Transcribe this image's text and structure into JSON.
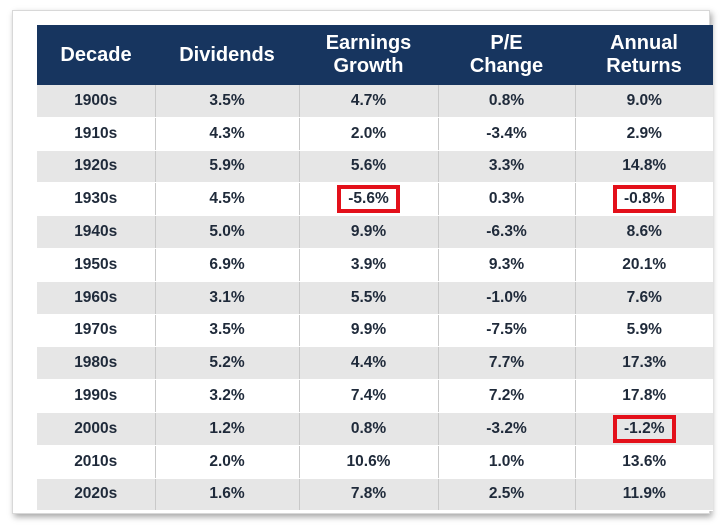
{
  "chart_data": {
    "type": "table",
    "columns": [
      "Decade",
      "Dividends",
      "Earnings\nGrowth",
      "P/E\nChange",
      "Annual\nReturns"
    ],
    "rows": [
      [
        "1900s",
        "3.5%",
        "4.7%",
        "0.8%",
        "9.0%"
      ],
      [
        "1910s",
        "4.3%",
        "2.0%",
        "-3.4%",
        "2.9%"
      ],
      [
        "1920s",
        "5.9%",
        "5.6%",
        "3.3%",
        "14.8%"
      ],
      [
        "1930s",
        "4.5%",
        "-5.6%",
        "0.3%",
        "-0.8%"
      ],
      [
        "1940s",
        "5.0%",
        "9.9%",
        "-6.3%",
        "8.6%"
      ],
      [
        "1950s",
        "6.9%",
        "3.9%",
        "9.3%",
        "20.1%"
      ],
      [
        "1960s",
        "3.1%",
        "5.5%",
        "-1.0%",
        "7.6%"
      ],
      [
        "1970s",
        "3.5%",
        "9.9%",
        "-7.5%",
        "5.9%"
      ],
      [
        "1980s",
        "5.2%",
        "4.4%",
        "7.7%",
        "17.3%"
      ],
      [
        "1990s",
        "3.2%",
        "7.4%",
        "7.2%",
        "17.8%"
      ],
      [
        "2000s",
        "1.2%",
        "0.8%",
        "-3.2%",
        "-1.2%"
      ],
      [
        "2010s",
        "2.0%",
        "10.6%",
        "1.0%",
        "13.6%"
      ],
      [
        "2020s",
        "1.6%",
        "7.8%",
        "2.5%",
        "11.9%"
      ]
    ],
    "highlighted_cells": [
      {
        "row": 3,
        "col": 2
      },
      {
        "row": 3,
        "col": 4
      },
      {
        "row": 10,
        "col": 4
      }
    ],
    "colors": {
      "header_bg": "#17355f",
      "header_text": "#ffffff",
      "row_shade": "#e6e6e6",
      "highlight": "#e3101a"
    }
  }
}
